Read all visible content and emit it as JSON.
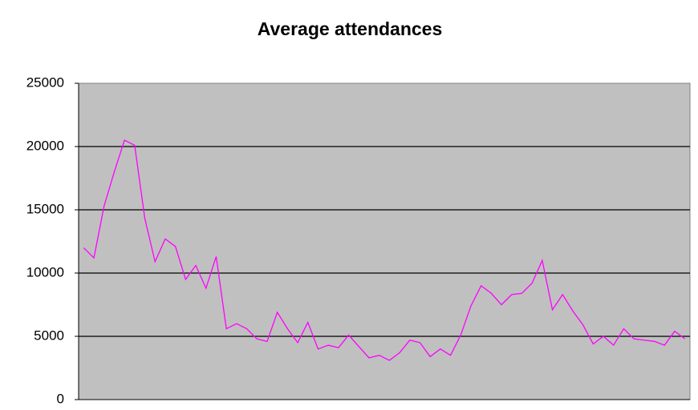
{
  "chart_data": {
    "type": "line",
    "title": "Average attendances",
    "categories": [
      null,
      null,
      null,
      null,
      null,
      null,
      null,
      null,
      null,
      null,
      null,
      null,
      null,
      null,
      null,
      null,
      null,
      null,
      null,
      null,
      null,
      null,
      null,
      null,
      null,
      null,
      null,
      null,
      null,
      null,
      null,
      null,
      null,
      null,
      null,
      null,
      null,
      null,
      null,
      null,
      null,
      null,
      null,
      null,
      null,
      null,
      null,
      null,
      null,
      null,
      null,
      null,
      null,
      null,
      null,
      null,
      null,
      null,
      null,
      null
    ],
    "series": [
      {
        "color": "#ff00ff",
        "values": [
          12000,
          11200,
          15300,
          18000,
          20500,
          20100,
          14300,
          10900,
          12700,
          12100,
          9500,
          10600,
          8800,
          11300,
          5600,
          6000,
          5600,
          4800,
          4600,
          6900,
          5600,
          4500,
          6100,
          4000,
          4300,
          4100,
          5100,
          4200,
          3300,
          3500,
          3100,
          3700,
          4700,
          4500,
          3400,
          4000,
          3500,
          5100,
          7400,
          9000,
          8400,
          7500,
          8300,
          8400,
          9200,
          11000,
          7100,
          8300,
          7000,
          5900,
          4400,
          5000,
          4300,
          5600,
          4800,
          4700,
          4600,
          4300,
          5400,
          4800
        ]
      }
    ],
    "ylim": [
      0,
      25000
    ],
    "yticks": [
      0,
      5000,
      10000,
      15000,
      20000,
      25000
    ],
    "grid": true,
    "background": "#c0c0c0"
  }
}
